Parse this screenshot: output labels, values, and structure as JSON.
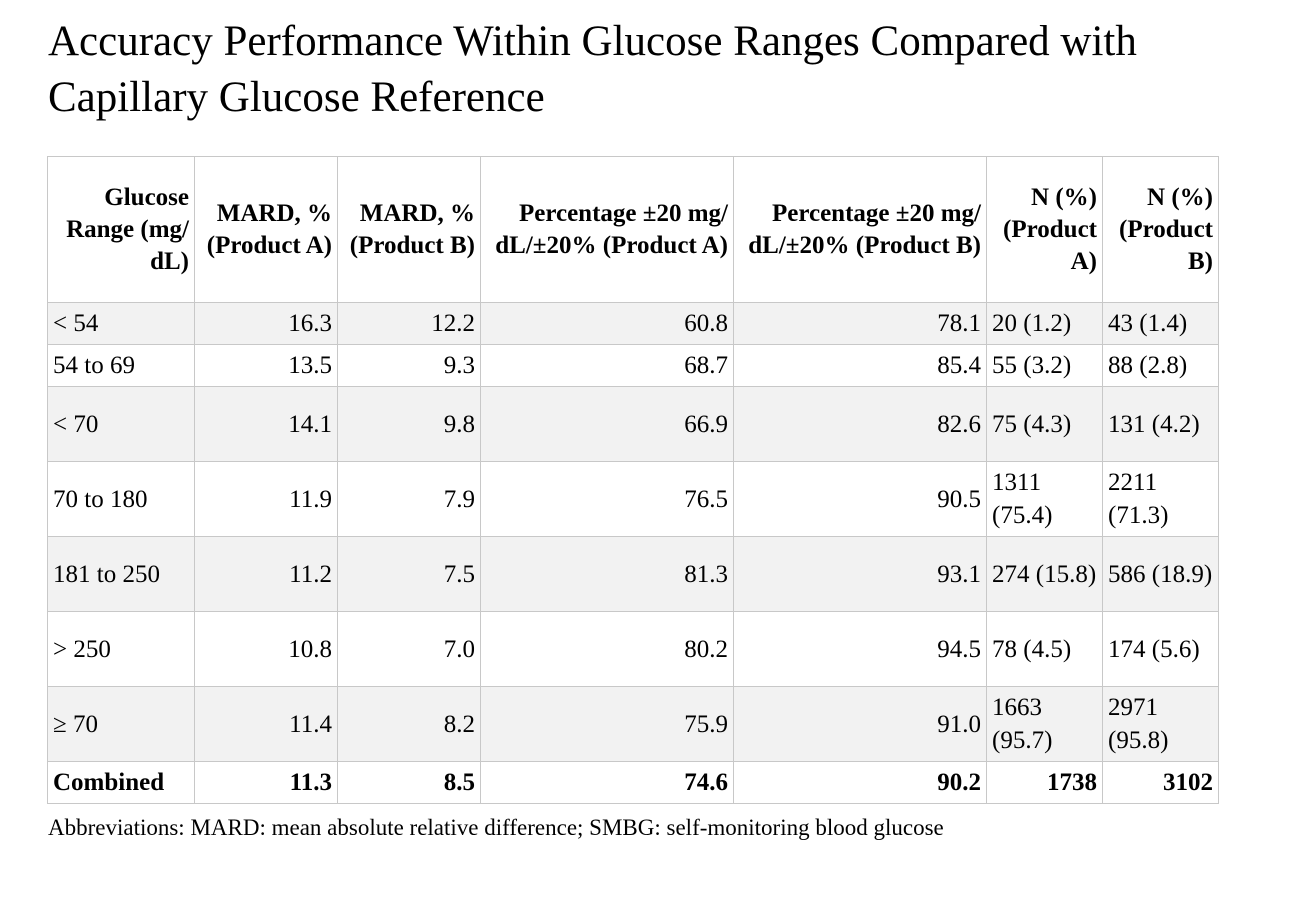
{
  "title": "Accuracy Performance Within Glucose Ranges Compared with Capillary Glucose Reference",
  "table": {
    "headers": [
      "Glucose Range (mg/ dL)",
      "MARD, % (Product A)",
      "MARD, % (Product B)",
      "Percentage ±20 mg/ dL/±20% (Product A)",
      "Percentage ±20 mg/ dL/±20% (Product B)",
      "N (%) (Product A)",
      "N (%) (Product B)"
    ],
    "rows": [
      [
        "< 54",
        "16.3",
        "12.2",
        "60.8",
        "78.1",
        "20 (1.2)",
        "43 (1.4)"
      ],
      [
        "54 to 69",
        "13.5",
        "9.3",
        "68.7",
        "85.4",
        "55 (3.2)",
        "88 (2.8)"
      ],
      [
        "< 70",
        "14.1",
        "9.8",
        "66.9",
        "82.6",
        "75 (4.3)",
        "131 (4.2)"
      ],
      [
        "70 to 180",
        "11.9",
        "7.9",
        "76.5",
        "90.5",
        "1311 (75.4)",
        "2211 (71.3)"
      ],
      [
        "181 to 250",
        "11.2",
        "7.5",
        "81.3",
        "93.1",
        "274 (15.8)",
        "586 (18.9)"
      ],
      [
        "> 250",
        "10.8",
        "7.0",
        "80.2",
        "94.5",
        "78 (4.5)",
        "174 (5.6)"
      ],
      [
        "≥ 70",
        "11.4",
        "8.2",
        "75.9",
        "91.0",
        "1663 (95.7)",
        "2971 (95.8)"
      ]
    ],
    "combined": [
      "Combined",
      "11.3",
      "8.5",
      "74.6",
      "90.2",
      "1738",
      "3102"
    ]
  },
  "footnote": "Abbreviations: MARD: mean absolute relative difference; SMBG: self-monitoring blood glucose"
}
